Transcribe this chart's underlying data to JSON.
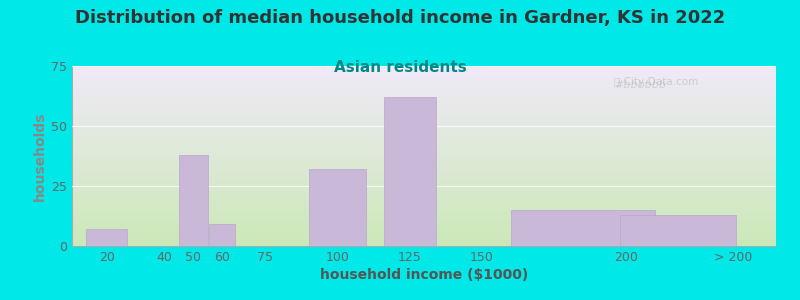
{
  "title": "Distribution of median household income in Gardner, KS in 2022",
  "subtitle": "Asian residents",
  "xlabel": "household income ($1000)",
  "ylabel": "households",
  "bar_color": "#c9b8d8",
  "bar_edgecolor": "#b8a8cc",
  "background_color": "#00e8e8",
  "plot_bg_top": "#cce8b8",
  "plot_bg_bottom": "#f0eaf8",
  "ylim": [
    0,
    75
  ],
  "yticks": [
    0,
    25,
    50,
    75
  ],
  "title_color": "#333333",
  "subtitle_color": "#008888",
  "ylabel_color": "#888888",
  "xlabel_color": "#555555",
  "tick_color": "#666666",
  "watermark_color": "#bbbbbb",
  "bar_centers": [
    20,
    50,
    60,
    100,
    125,
    185,
    218
  ],
  "bar_widths": [
    14,
    10,
    9,
    20,
    18,
    50,
    40
  ],
  "bar_heights": [
    7,
    38,
    9,
    32,
    62,
    15,
    13
  ],
  "xtick_positions": [
    20,
    40,
    50,
    60,
    75,
    100,
    125,
    150,
    200
  ],
  "xtick_labels": [
    "20",
    "40",
    "50",
    "60",
    "75",
    "100",
    "125",
    "150",
    "200"
  ],
  "xmax_label": "> 200",
  "xmax_pos": 237,
  "title_fontsize": 13,
  "subtitle_fontsize": 11,
  "axis_label_fontsize": 10,
  "tick_fontsize": 9,
  "xmin": 8,
  "xmax": 252
}
